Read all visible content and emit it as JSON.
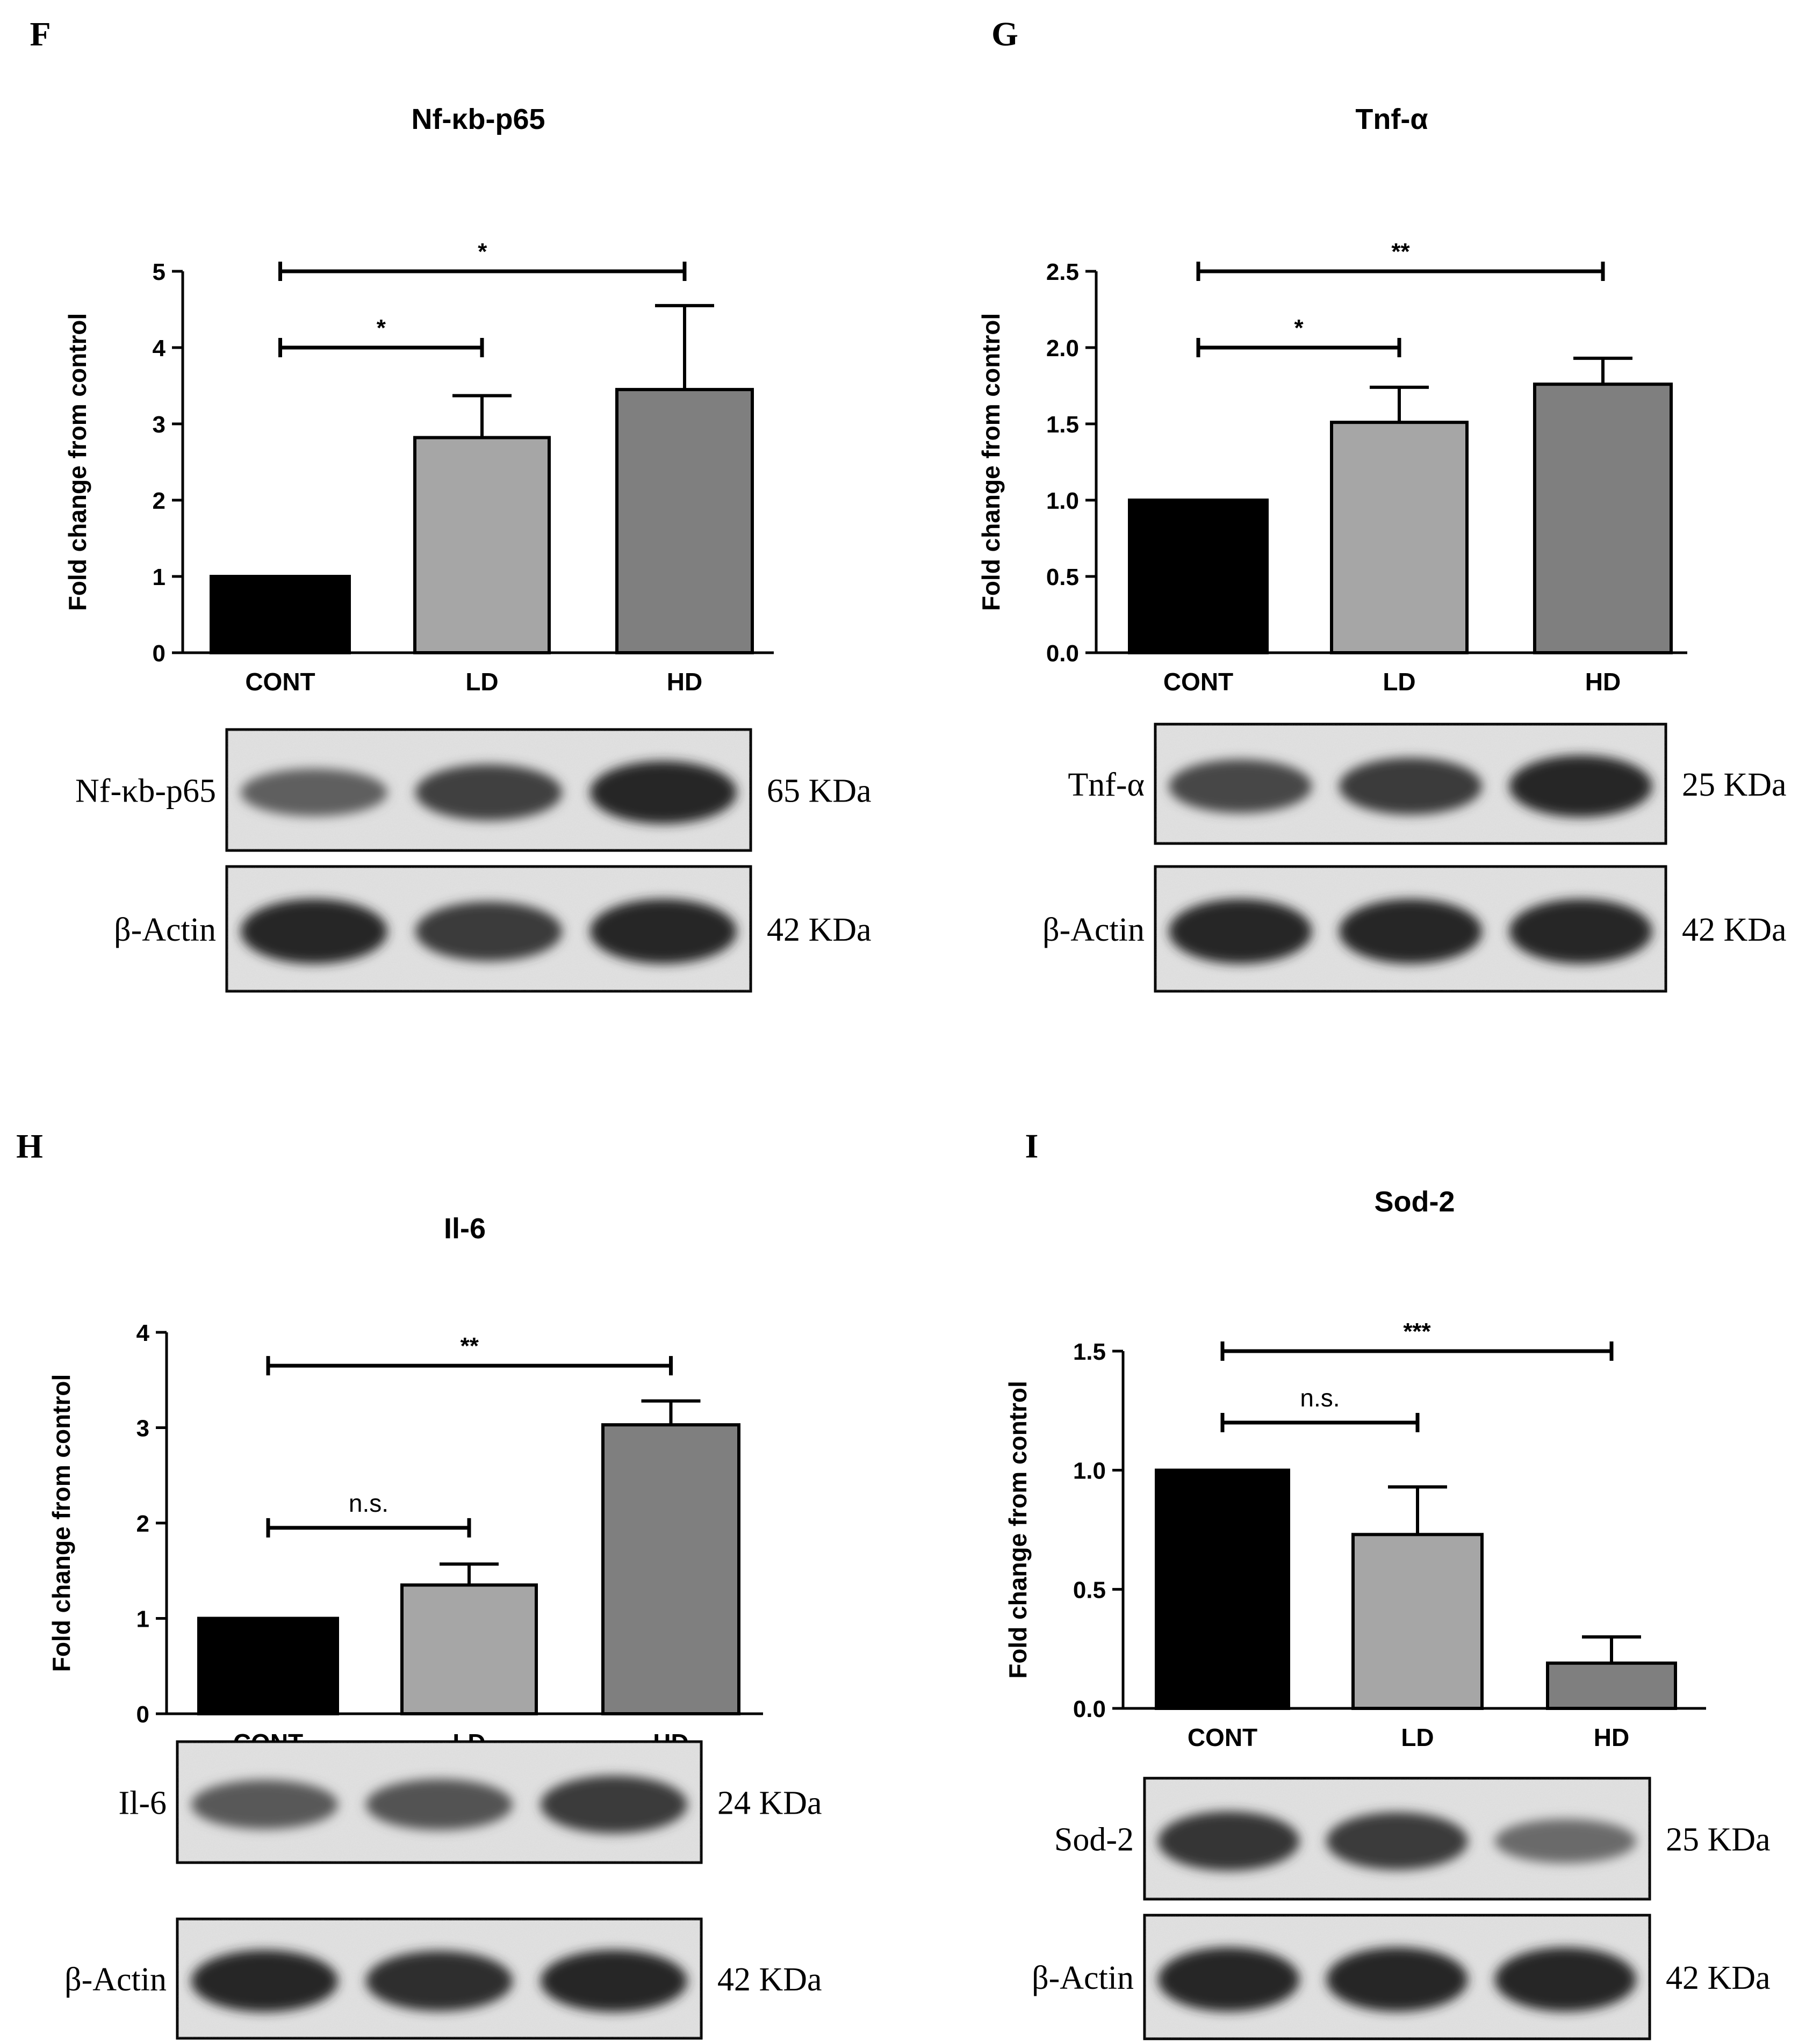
{
  "chart_data": [
    {
      "panel": "F",
      "type": "bar",
      "title": "Nf-κb-p65",
      "ylabel": "Fold change from control",
      "xlabel": "",
      "categories": [
        "CONT",
        "LD",
        "HD"
      ],
      "values": [
        1.0,
        2.82,
        3.45
      ],
      "errors": [
        0,
        0.55,
        1.1
      ],
      "ylim": [
        0,
        5
      ],
      "yticks": [
        "0",
        "1",
        "2",
        "3",
        "4",
        "5"
      ],
      "colors": [
        "#000000",
        "#a6a6a6",
        "#7f7f7f"
      ],
      "significance": [
        {
          "from": 0,
          "to": 1,
          "label": "*",
          "level": 4.0
        },
        {
          "from": 0,
          "to": 2,
          "label": "*",
          "level": 5.0
        }
      ],
      "blot": {
        "target_label": "Nf-κb-p65",
        "target_kda": "65 KDa",
        "loading_label": "β-Actin",
        "loading_kda": "42 KDa",
        "target_intensity": [
          0.55,
          0.8,
          1.0
        ],
        "loading_intensity": [
          1.0,
          0.85,
          1.0
        ]
      }
    },
    {
      "panel": "G",
      "type": "bar",
      "title": "Tnf-α",
      "ylabel": "Fold change from control",
      "xlabel": "",
      "categories": [
        "CONT",
        "LD",
        "HD"
      ],
      "values": [
        1.0,
        1.51,
        1.76
      ],
      "errors": [
        0,
        0.23,
        0.17
      ],
      "ylim": [
        0,
        2.5
      ],
      "yticks": [
        "0.0",
        "0.5",
        "1.0",
        "1.5",
        "2.0",
        "2.5"
      ],
      "colors": [
        "#000000",
        "#a6a6a6",
        "#7f7f7f"
      ],
      "significance": [
        {
          "from": 0,
          "to": 1,
          "label": "*",
          "level": 2.0
        },
        {
          "from": 0,
          "to": 2,
          "label": "**",
          "level": 2.5
        }
      ],
      "blot": {
        "target_label": "Tnf-α",
        "target_kda": "25 KDa",
        "loading_label": "β-Actin",
        "loading_kda": "42 KDa",
        "target_intensity": [
          0.75,
          0.85,
          1.0
        ],
        "loading_intensity": [
          1.0,
          1.0,
          1.0
        ]
      }
    },
    {
      "panel": "H",
      "type": "bar",
      "title": "Il-6",
      "ylabel": "Fold change from control",
      "xlabel": "",
      "categories": [
        "CONT",
        "LD",
        "HD"
      ],
      "values": [
        1.0,
        1.35,
        3.03
      ],
      "errors": [
        0,
        0.22,
        0.25
      ],
      "ylim": [
        0,
        4
      ],
      "yticks": [
        "0",
        "1",
        "2",
        "3",
        "4"
      ],
      "colors": [
        "#000000",
        "#a6a6a6",
        "#7f7f7f"
      ],
      "significance": [
        {
          "from": 0,
          "to": 1,
          "label": "n.s.",
          "level": 1.95
        },
        {
          "from": 0,
          "to": 2,
          "label": "**",
          "level": 3.65
        }
      ],
      "blot": {
        "target_label": "Il-6",
        "target_kda": "24 KDa",
        "loading_label": "β-Actin",
        "loading_kda": "42 KDa",
        "target_intensity": [
          0.6,
          0.65,
          0.85
        ],
        "loading_intensity": [
          1.0,
          0.95,
          1.0
        ]
      }
    },
    {
      "panel": "I",
      "type": "bar",
      "title": "Sod-2",
      "ylabel": "Fold change from control",
      "xlabel": "",
      "categories": [
        "CONT",
        "LD",
        "HD"
      ],
      "values": [
        1.0,
        0.73,
        0.19
      ],
      "errors": [
        0,
        0.2,
        0.11
      ],
      "ylim": [
        0,
        1.5
      ],
      "yticks": [
        "0.0",
        "0.5",
        "1.0",
        "1.5"
      ],
      "colors": [
        "#000000",
        "#a6a6a6",
        "#7f7f7f"
      ],
      "significance": [
        {
          "from": 0,
          "to": 1,
          "label": "n.s.",
          "level": 1.2
        },
        {
          "from": 0,
          "to": 2,
          "label": "***",
          "level": 1.5
        }
      ],
      "blot": {
        "target_label": "Sod-2",
        "target_kda": "25 KDa",
        "loading_label": "β-Actin",
        "loading_kda": "42 KDa",
        "target_intensity": [
          0.9,
          0.85,
          0.45
        ],
        "loading_intensity": [
          1.0,
          1.0,
          1.0
        ]
      }
    }
  ]
}
